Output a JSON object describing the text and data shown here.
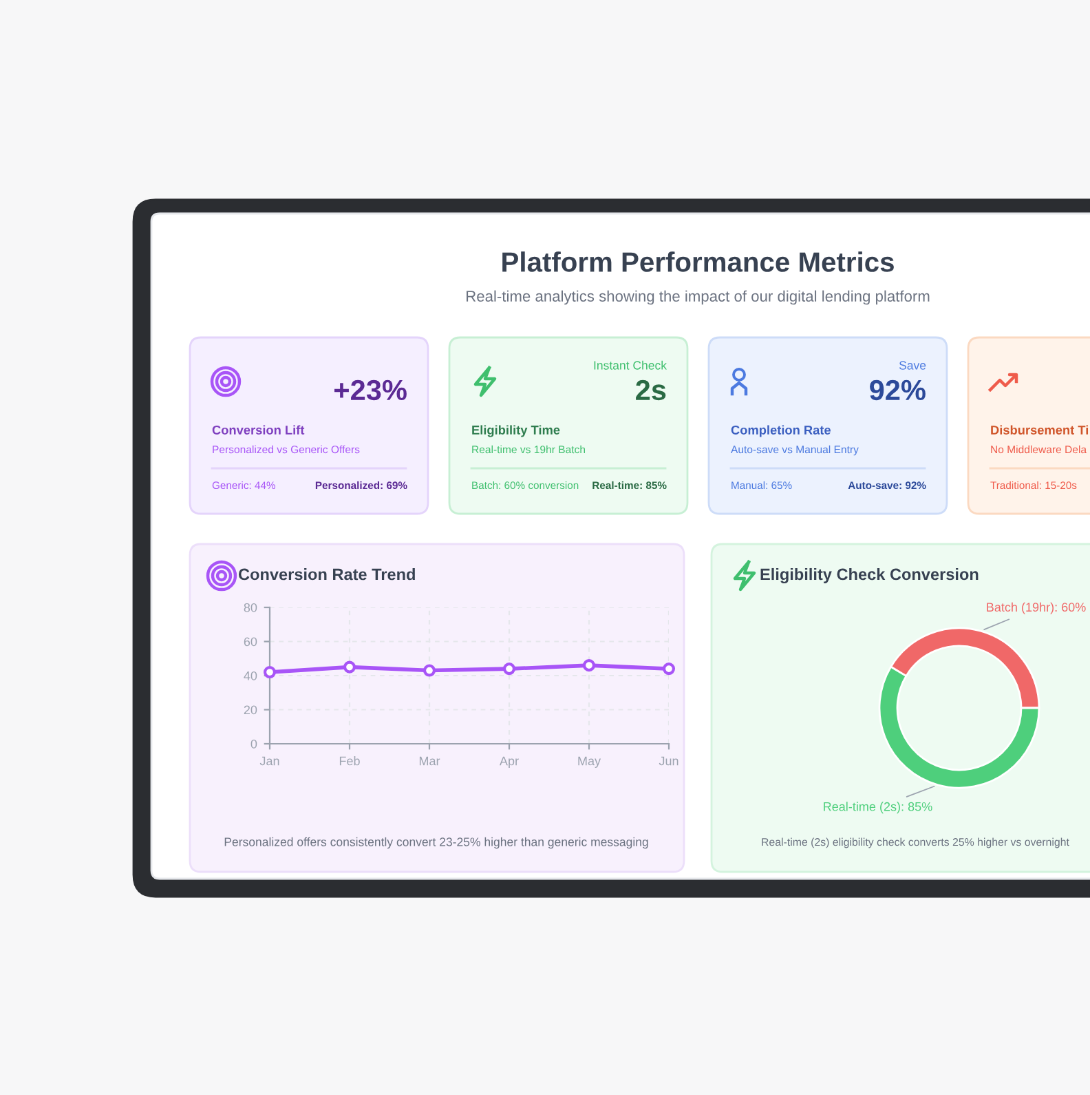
{
  "chart_data": [
    {
      "type": "other",
      "title": "Platform Performance Metrics",
      "subtitle": "Real-time analytics showing the impact of our digital lending platform"
    },
    {
      "type": "other",
      "title": "Conversion Lift",
      "subtitle": "Personalized vs Generic Offers",
      "annotations": [
        "Generic: 44%",
        "Personalized: 69%",
        "+23%"
      ]
    },
    {
      "type": "other",
      "title": "Eligibility Time",
      "subtitle": "Real-time vs 19hr Batch",
      "annotations": [
        "Batch: 60% conversion",
        "Real-time: 85%",
        "2s",
        "Instant Check"
      ]
    },
    {
      "type": "other",
      "title": "Completion Rate",
      "subtitle": "Auto-save vs Manual Entry",
      "annotations": [
        "Manual: 65%",
        "Auto-save: 92%",
        "92%",
        "Save"
      ]
    },
    {
      "type": "other",
      "title": "Disbursement Ti",
      "subtitle": "No Middleware Dela",
      "annotations": [
        "Traditional: 15-20s"
      ]
    },
    {
      "type": "line",
      "title": "Conversion Rate Trend",
      "categories": [
        "Jan",
        "Feb",
        "Mar",
        "Apr",
        "May",
        "Jun"
      ],
      "series": [
        {
          "color": "#a855f7",
          "values": [
            42,
            45,
            43,
            44,
            46,
            44
          ]
        }
      ],
      "ylim": [
        0,
        80
      ],
      "yticks": [
        0,
        20,
        40,
        60,
        80
      ],
      "grid": true,
      "marker": "circle",
      "line_style": "solid",
      "annotations": [
        "Personalized offers consistently convert 23-25% higher than generic messaging"
      ]
    },
    {
      "type": "donut",
      "title": "Eligibility Check Conversion",
      "categories": [
        "Batch (19hr): 60%",
        "Real-time (2s): 85%"
      ],
      "values": [
        60,
        85
      ],
      "colors": [
        "#f06868",
        "#4ecf7c"
      ],
      "annotations": [
        "Real-time (2s) eligibility check converts 25% higher vs overnight"
      ]
    }
  ]
}
